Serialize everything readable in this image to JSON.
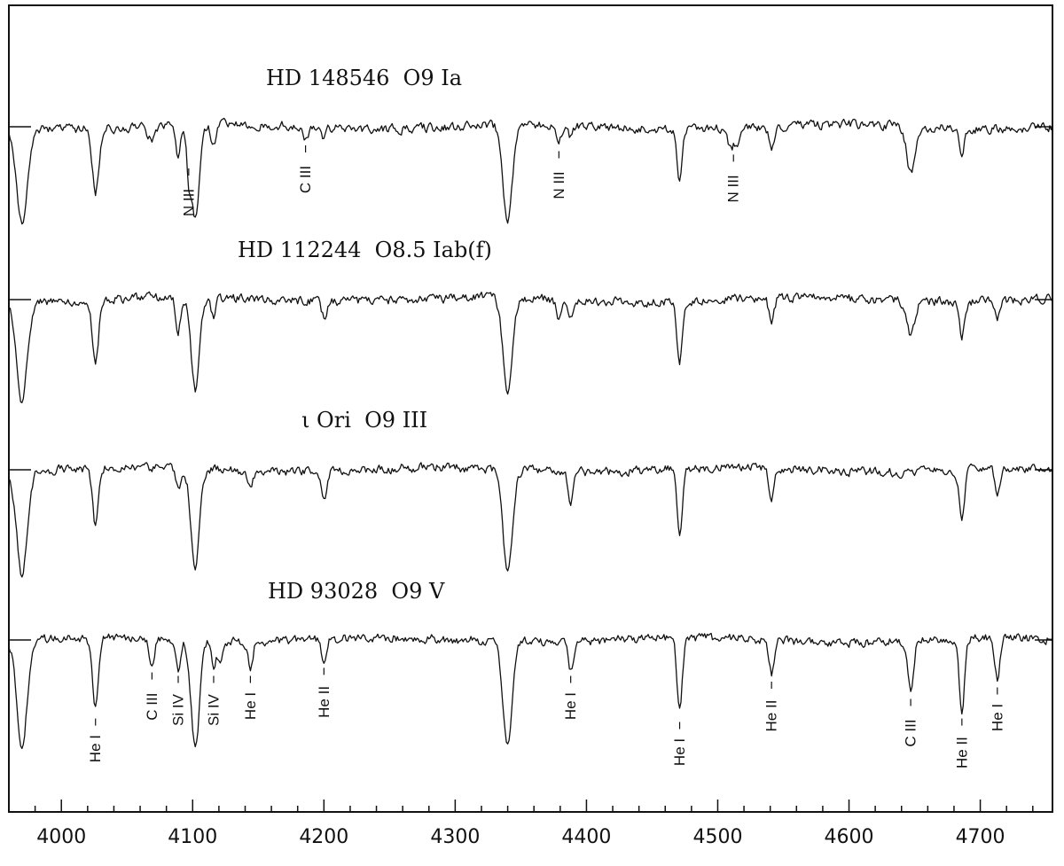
{
  "chart_data": {
    "type": "line",
    "x_range": [
      3960,
      4755
    ],
    "x_ticks": [
      4000,
      4100,
      4200,
      4300,
      4400,
      4500,
      4600,
      4700
    ],
    "series": [
      {
        "name": "HD 148546  O9 Ia",
        "lines": [
          {
            "x": 3970,
            "depth": 0.85,
            "width": 4
          },
          {
            "x": 4026,
            "depth": 0.55,
            "width": 2.5
          },
          {
            "x": 4069,
            "depth": 0.12,
            "width": 3
          },
          {
            "x": 4089,
            "depth": 0.28,
            "width": 1.8
          },
          {
            "x": 4097,
            "depth": 0.3,
            "width": 1.6
          },
          {
            "x": 4102,
            "depth": 0.82,
            "width": 3.2
          },
          {
            "x": 4116,
            "depth": 0.18,
            "width": 1.8
          },
          {
            "x": 4186,
            "depth": 0.1,
            "width": 2
          },
          {
            "x": 4200,
            "depth": 0.08,
            "width": 2
          },
          {
            "x": 4340,
            "depth": 0.85,
            "width": 3.5
          },
          {
            "x": 4379,
            "depth": 0.15,
            "width": 2
          },
          {
            "x": 4388,
            "depth": 0.1,
            "width": 2
          },
          {
            "x": 4471,
            "depth": 0.45,
            "width": 2
          },
          {
            "x": 4510,
            "depth": 0.18,
            "width": 2
          },
          {
            "x": 4515,
            "depth": 0.15,
            "width": 2
          },
          {
            "x": 4541,
            "depth": 0.18,
            "width": 2
          },
          {
            "x": 4647,
            "depth": 0.4,
            "width": 3
          },
          {
            "x": 4686,
            "depth": 0.2,
            "width": 2
          }
        ]
      },
      {
        "name": "HD 112244  O8.5 Iab(f)",
        "lines": [
          {
            "x": 3970,
            "depth": 0.85,
            "width": 4
          },
          {
            "x": 4026,
            "depth": 0.55,
            "width": 2.3
          },
          {
            "x": 4089,
            "depth": 0.28,
            "width": 1.8
          },
          {
            "x": 4102,
            "depth": 0.8,
            "width": 3.2
          },
          {
            "x": 4116,
            "depth": 0.18,
            "width": 1.6
          },
          {
            "x": 4200,
            "depth": 0.12,
            "width": 2
          },
          {
            "x": 4340,
            "depth": 0.85,
            "width": 3.5
          },
          {
            "x": 4379,
            "depth": 0.15,
            "width": 2
          },
          {
            "x": 4388,
            "depth": 0.12,
            "width": 2
          },
          {
            "x": 4471,
            "depth": 0.55,
            "width": 2
          },
          {
            "x": 4541,
            "depth": 0.2,
            "width": 2
          },
          {
            "x": 4647,
            "depth": 0.3,
            "width": 3
          },
          {
            "x": 4686,
            "depth": 0.3,
            "width": 2
          },
          {
            "x": 4713,
            "depth": 0.15,
            "width": 2
          }
        ]
      },
      {
        "name": "ι Ori  O9 III",
        "lines": [
          {
            "x": 3970,
            "depth": 0.9,
            "width": 4
          },
          {
            "x": 4026,
            "depth": 0.5,
            "width": 2.3
          },
          {
            "x": 4089,
            "depth": 0.18,
            "width": 1.8
          },
          {
            "x": 4102,
            "depth": 0.85,
            "width": 3.2
          },
          {
            "x": 4144,
            "depth": 0.15,
            "width": 1.8
          },
          {
            "x": 4200,
            "depth": 0.25,
            "width": 2
          },
          {
            "x": 4340,
            "depth": 0.9,
            "width": 3.5
          },
          {
            "x": 4388,
            "depth": 0.25,
            "width": 2
          },
          {
            "x": 4471,
            "depth": 0.55,
            "width": 2
          },
          {
            "x": 4541,
            "depth": 0.25,
            "width": 2
          },
          {
            "x": 4686,
            "depth": 0.4,
            "width": 2
          },
          {
            "x": 4713,
            "depth": 0.2,
            "width": 2
          }
        ]
      },
      {
        "name": "HD 93028  O9 V",
        "lines": [
          {
            "x": 3970,
            "depth": 0.92,
            "width": 4
          },
          {
            "x": 4026,
            "depth": 0.62,
            "width": 2.3
          },
          {
            "x": 4069,
            "depth": 0.22,
            "width": 1.8
          },
          {
            "x": 4089,
            "depth": 0.25,
            "width": 1.8
          },
          {
            "x": 4102,
            "depth": 0.92,
            "width": 3.2
          },
          {
            "x": 4116,
            "depth": 0.25,
            "width": 1.6
          },
          {
            "x": 4121,
            "depth": 0.18,
            "width": 1.6
          },
          {
            "x": 4144,
            "depth": 0.25,
            "width": 1.8
          },
          {
            "x": 4200,
            "depth": 0.18,
            "width": 2
          },
          {
            "x": 4340,
            "depth": 0.92,
            "width": 3.5
          },
          {
            "x": 4388,
            "depth": 0.25,
            "width": 2
          },
          {
            "x": 4471,
            "depth": 0.65,
            "width": 2
          },
          {
            "x": 4541,
            "depth": 0.3,
            "width": 2
          },
          {
            "x": 4647,
            "depth": 0.45,
            "width": 2.2
          },
          {
            "x": 4686,
            "depth": 0.62,
            "width": 2
          },
          {
            "x": 4713,
            "depth": 0.35,
            "width": 2
          }
        ]
      }
    ],
    "line_labels": [
      {
        "text": "N III",
        "series": 0,
        "x": 4097
      },
      {
        "text": "C III",
        "series": 0,
        "x": 4186
      },
      {
        "text": "N III",
        "series": 0,
        "x": 4379
      },
      {
        "text": "N III",
        "series": 0,
        "x": 4512
      },
      {
        "text": "He I",
        "series": 3,
        "x": 4026
      },
      {
        "text": "C III",
        "series": 3,
        "x": 4069
      },
      {
        "text": "Si IV",
        "series": 3,
        "x": 4089
      },
      {
        "text": "Si IV",
        "series": 3,
        "x": 4116
      },
      {
        "text": "He I",
        "series": 3,
        "x": 4144
      },
      {
        "text": "He II",
        "series": 3,
        "x": 4200
      },
      {
        "text": "He I",
        "series": 3,
        "x": 4388
      },
      {
        "text": "He I",
        "series": 3,
        "x": 4471
      },
      {
        "text": "He II",
        "series": 3,
        "x": 4541
      },
      {
        "text": "C III",
        "series": 3,
        "x": 4647
      },
      {
        "text": "He II",
        "series": 3,
        "x": 4686
      },
      {
        "text": "He I",
        "series": 3,
        "x": 4713
      }
    ],
    "grid": false,
    "legend": "none"
  }
}
